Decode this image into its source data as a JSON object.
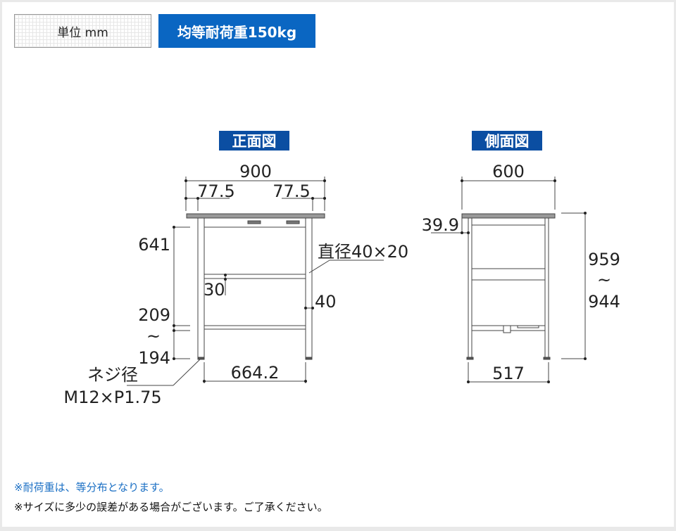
{
  "header": {
    "unit_label": "単位 mm",
    "load_label": "均等耐荷重150kg"
  },
  "front_view": {
    "title": "正面図",
    "width": "900",
    "offset_left": "77.5",
    "offset_right": "77.5",
    "height_upper": "641",
    "height_lower_max": "209",
    "range_mark": "~",
    "height_lower_min": "194",
    "pipe": "直径40×20",
    "brace_gap": "30",
    "brace_height": "40",
    "inner_width": "664.2",
    "screw_label": "ネジ径",
    "screw_size": "M12×P1.75"
  },
  "side_view": {
    "title": "側面図",
    "depth": "600",
    "apron": "39.9",
    "height_max": "959",
    "range_mark": "~",
    "height_min": "944",
    "inner_depth": "517"
  },
  "notes": [
    "※耐荷重は、等分布となります。",
    "※サイズに多少の誤差がある場合がございます。ご了承ください。"
  ],
  "colors": {
    "accent": "#0a66c2",
    "title_bg": "#0b4ea2",
    "note_blue": "#1a6fc4"
  }
}
